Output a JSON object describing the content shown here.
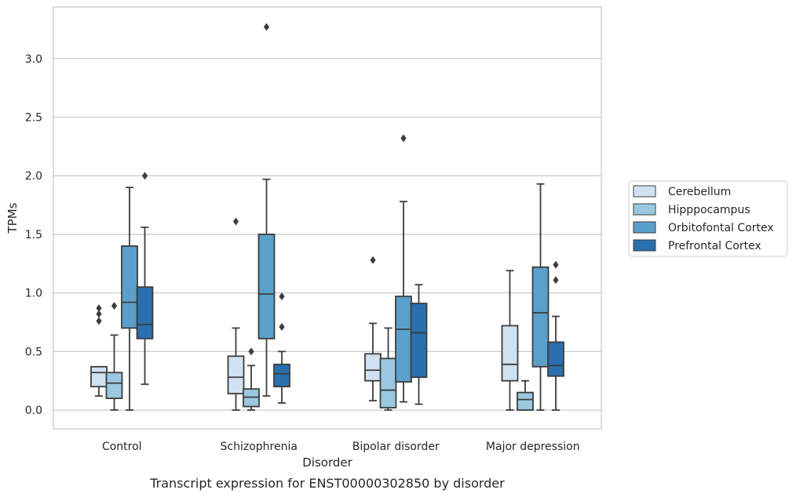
{
  "caption": "Transcript expression for ENST00000302850 by disorder",
  "chart_data": {
    "type": "box",
    "xlabel": "Disorder",
    "ylabel": "TPMs",
    "ylim": [
      -0.16,
      3.44
    ],
    "yticks": [
      0.0,
      0.5,
      1.0,
      1.5,
      2.0,
      2.5,
      3.0
    ],
    "ytick_labels": [
      "0.0",
      "0.5",
      "1.0",
      "1.5",
      "2.0",
      "2.5",
      "3.0"
    ],
    "grid": "horizontal",
    "legend_position": "right",
    "categories": [
      "Control",
      "Schizophrenia",
      "Bipolar disorder",
      "Major depression"
    ],
    "series": [
      {
        "name": "Cerebellum",
        "color": "#d0e2f2",
        "boxes": [
          {
            "whislo": 0.12,
            "q1": 0.2,
            "med": 0.32,
            "q3": 0.37,
            "whishi": 0.37,
            "fliers": [
              0.76,
              0.82,
              0.87
            ]
          },
          {
            "whislo": 0.0,
            "q1": 0.14,
            "med": 0.28,
            "q3": 0.46,
            "whishi": 0.7,
            "fliers": [
              1.61
            ]
          },
          {
            "whislo": 0.08,
            "q1": 0.25,
            "med": 0.34,
            "q3": 0.48,
            "whishi": 0.74,
            "fliers": [
              1.28
            ]
          },
          {
            "whislo": 0.0,
            "q1": 0.25,
            "med": 0.39,
            "q3": 0.72,
            "whishi": 1.19,
            "fliers": []
          }
        ]
      },
      {
        "name": "Hipppocampus",
        "color": "#9ac8e0",
        "boxes": [
          {
            "whislo": 0.0,
            "q1": 0.1,
            "med": 0.23,
            "q3": 0.32,
            "whishi": 0.64,
            "fliers": [
              0.89
            ]
          },
          {
            "whislo": 0.0,
            "q1": 0.03,
            "med": 0.11,
            "q3": 0.18,
            "whishi": 0.38,
            "fliers": [
              0.5
            ]
          },
          {
            "whislo": 0.0,
            "q1": 0.02,
            "med": 0.17,
            "q3": 0.44,
            "whishi": 0.7,
            "fliers": []
          },
          {
            "whislo": 0.0,
            "q1": 0.0,
            "med": 0.09,
            "q3": 0.15,
            "whishi": 0.25,
            "fliers": []
          }
        ]
      },
      {
        "name": "Orbitofontal Cortex",
        "color": "#5b9fcc",
        "boxes": [
          {
            "whislo": 0.0,
            "q1": 0.7,
            "med": 0.92,
            "q3": 1.4,
            "whishi": 1.9,
            "fliers": []
          },
          {
            "whislo": 0.12,
            "q1": 0.61,
            "med": 0.99,
            "q3": 1.5,
            "whishi": 1.97,
            "fliers": [
              3.27
            ]
          },
          {
            "whislo": 0.07,
            "q1": 0.24,
            "med": 0.69,
            "q3": 0.97,
            "whishi": 1.78,
            "fliers": [
              2.32
            ]
          },
          {
            "whislo": 0.0,
            "q1": 0.37,
            "med": 0.83,
            "q3": 1.22,
            "whishi": 1.93,
            "fliers": []
          }
        ]
      },
      {
        "name": "Prefrontal Cortex",
        "color": "#2a6fae",
        "boxes": [
          {
            "whislo": 0.22,
            "q1": 0.61,
            "med": 0.73,
            "q3": 1.05,
            "whishi": 1.56,
            "fliers": [
              2.0
            ]
          },
          {
            "whislo": 0.06,
            "q1": 0.2,
            "med": 0.31,
            "q3": 0.39,
            "whishi": 0.5,
            "fliers": [
              0.71,
              0.97
            ]
          },
          {
            "whislo": 0.05,
            "q1": 0.28,
            "med": 0.66,
            "q3": 0.91,
            "whishi": 1.07,
            "fliers": []
          },
          {
            "whislo": 0.0,
            "q1": 0.29,
            "med": 0.38,
            "q3": 0.58,
            "whishi": 0.8,
            "fliers": [
              1.11,
              1.24
            ]
          }
        ]
      }
    ]
  }
}
